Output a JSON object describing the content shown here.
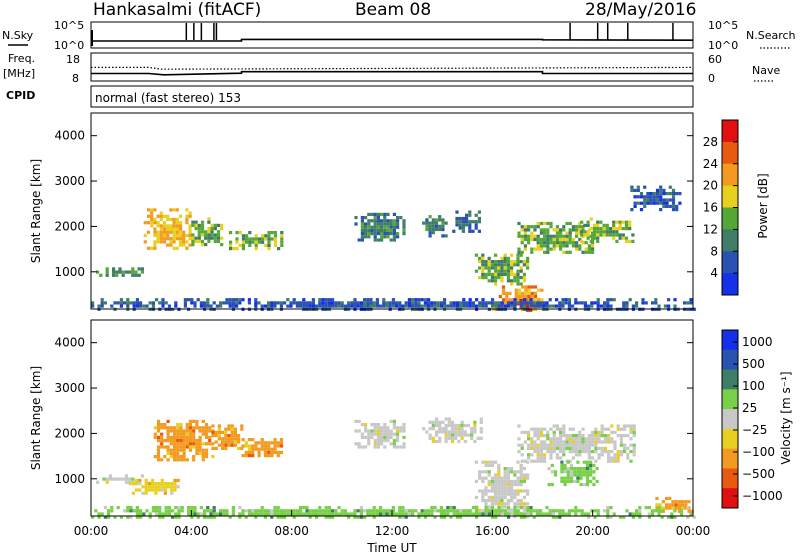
{
  "header": {
    "station": "Hankasalmi (fitACF)",
    "beam": "Beam 08",
    "date": "28/May/2016"
  },
  "strip_labels": {
    "nsky": "N.Sky",
    "nsky_hi": "10^5",
    "nsky_lo": "10^0",
    "nsearch": "N.Search",
    "nsearch_hi": "10^5",
    "nsearch_lo": "10^0",
    "freq_1": "Freq.",
    "freq_2": "[MHz]",
    "freq_hi": "18",
    "freq_lo": "8",
    "nave": "Nave",
    "nave_hi": "60",
    "nave_lo": "0",
    "cpid": "CPID",
    "cpid_value": "normal (fast stereo) 153"
  },
  "chart_data": [
    {
      "type": "line",
      "panel": "N.Sky / N.Search",
      "x_unit": "hours UT",
      "x": [
        0,
        6,
        6,
        18,
        18,
        24
      ],
      "series": [
        {
          "values": [
            1,
            1,
            1.4,
            1.4,
            1.3,
            1.2
          ]
        }
      ],
      "spikes_x": [
        3.8,
        4.1,
        4.4,
        4.9,
        5.0,
        19.1,
        20.2,
        20.6,
        21.4,
        23.2
      ]
    },
    {
      "type": "line",
      "panel": "Freq / Nave",
      "x_unit": "hours UT",
      "x": [
        0,
        2.3,
        2.9,
        6,
        6,
        18,
        18,
        24
      ],
      "series": [
        {
          "values": [
            10.5,
            10.5,
            10.0,
            10.6,
            11.2,
            11.2,
            10.5,
            10.5
          ]
        }
      ],
      "nave_x": [
        0,
        2.3,
        2.8,
        24
      ],
      "nave_values": [
        29,
        29,
        25,
        29
      ]
    },
    {
      "type": "heatmap",
      "panel": "Power",
      "xlabel": "",
      "ylabel": "Slant Range [km]",
      "xlim": [
        0,
        24
      ],
      "ylim": [
        180,
        4500
      ],
      "yticks": [
        "1000",
        "2000",
        "3000",
        "4000"
      ],
      "colorbar_label": "Power [dB]",
      "colorbar_ticks": [
        "4",
        "8",
        "12",
        "16",
        "20",
        "24",
        "28"
      ],
      "colorbar_range": [
        0,
        32
      ],
      "colors": [
        "#1430e8",
        "#2a52b0",
        "#3f7d66",
        "#55a838",
        "#e8d020",
        "#f39a20",
        "#e85a10",
        "#e01010"
      ],
      "blobs": [
        {
          "t0": 0.2,
          "t1": 2.0,
          "r0": 950,
          "r1": 1100,
          "v": 12
        },
        {
          "t0": 2.1,
          "t1": 4.0,
          "r0": 1500,
          "r1": 2400,
          "v": 20
        },
        {
          "t0": 4.0,
          "t1": 5.2,
          "r0": 1600,
          "r1": 2200,
          "v": 14
        },
        {
          "t0": 5.5,
          "t1": 7.6,
          "r0": 1500,
          "r1": 1900,
          "v": 14
        },
        {
          "t0": 10.5,
          "t1": 12.5,
          "r0": 1700,
          "r1": 2300,
          "v": 10
        },
        {
          "t0": 13.2,
          "t1": 14.2,
          "r0": 1800,
          "r1": 2250,
          "v": 10
        },
        {
          "t0": 14.4,
          "t1": 15.5,
          "r0": 1900,
          "r1": 2350,
          "v": 8
        },
        {
          "t0": 15.3,
          "t1": 17.4,
          "r0": 700,
          "r1": 1400,
          "v": 14
        },
        {
          "t0": 16.0,
          "t1": 18.0,
          "r0": 200,
          "r1": 700,
          "v": 22
        },
        {
          "t0": 16.7,
          "t1": 17.5,
          "r0": 150,
          "r1": 400,
          "v": 30
        },
        {
          "t0": 17.0,
          "t1": 20.0,
          "r0": 1400,
          "r1": 2100,
          "v": 14
        },
        {
          "t0": 19.5,
          "t1": 21.6,
          "r0": 1700,
          "r1": 2200,
          "v": 14
        },
        {
          "t0": 21.5,
          "t1": 23.5,
          "r0": 2400,
          "r1": 2900,
          "v": 6
        },
        {
          "t0": 0.0,
          "t1": 24.0,
          "r0": 180,
          "r1": 420,
          "v": 6
        }
      ]
    },
    {
      "type": "heatmap",
      "panel": "Velocity",
      "xlabel": "Time UT",
      "ylabel": "Slant Range [km]",
      "xlim": [
        0,
        24
      ],
      "ylim": [
        180,
        4500
      ],
      "xticks": [
        "00:00",
        "04:00",
        "08:00",
        "12:00",
        "16:00",
        "20:00",
        "00:00"
      ],
      "yticks": [
        "1000",
        "2000",
        "3000",
        "4000"
      ],
      "colorbar_label": "Velocity [m s⁻¹]",
      "colorbar_ticks": [
        "1000",
        "500",
        "100",
        "25",
        "−25",
        "−100",
        "−500",
        "−1000"
      ],
      "colors": [
        "#1430e8",
        "#2a52b0",
        "#3f7d66",
        "#78d048",
        "#c8c8c8",
        "#e8d020",
        "#f39a20",
        "#e85a10",
        "#e01010"
      ],
      "blobs": [
        {
          "t0": 0.2,
          "t1": 2.0,
          "r0": 950,
          "r1": 1100,
          "c": 4
        },
        {
          "t0": 2.5,
          "t1": 4.8,
          "r0": 1400,
          "r1": 2300,
          "c": 6
        },
        {
          "t0": 4.8,
          "t1": 6.0,
          "r0": 1700,
          "r1": 2200,
          "c": 6
        },
        {
          "t0": 6.0,
          "t1": 7.6,
          "r0": 1500,
          "r1": 1900,
          "c": 6
        },
        {
          "t0": 1.5,
          "t1": 3.5,
          "r0": 700,
          "r1": 1000,
          "c": 5
        },
        {
          "t0": 10.5,
          "t1": 12.5,
          "r0": 1700,
          "r1": 2300,
          "c": 4
        },
        {
          "t0": 13.2,
          "t1": 15.5,
          "r0": 1800,
          "r1": 2350,
          "c": 4
        },
        {
          "t0": 15.3,
          "t1": 17.4,
          "r0": 200,
          "r1": 1400,
          "c": 4
        },
        {
          "t0": 17.0,
          "t1": 21.6,
          "r0": 1400,
          "r1": 2200,
          "c": 4
        },
        {
          "t0": 18.2,
          "t1": 20.3,
          "r0": 900,
          "r1": 1400,
          "c": 3
        },
        {
          "t0": 22.5,
          "t1": 24.0,
          "r0": 300,
          "r1": 600,
          "c": 6
        },
        {
          "t0": 0.0,
          "t1": 24.0,
          "r0": 180,
          "r1": 400,
          "c": 3
        }
      ]
    }
  ]
}
